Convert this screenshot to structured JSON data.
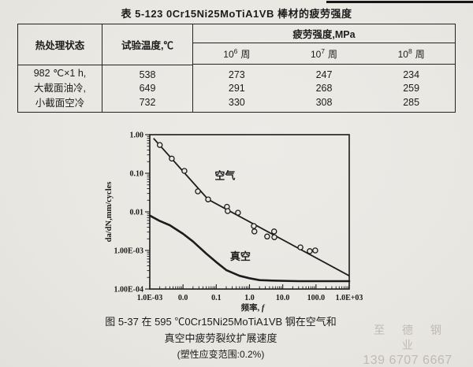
{
  "page": {
    "bg": "#e9e7e2",
    "ink": "#1c1c1c",
    "watermark_color": "#c0b9b5"
  },
  "table": {
    "title": "表 5-123  0Cr15Ni25MoTiA1VB 棒材的疲劳强度",
    "col_treatment": "热处理状态",
    "col_temp": "试验温度,℃",
    "col_fatigue": "疲劳强度,MPa",
    "cycle_cols": [
      {
        "base": "10",
        "exp": "6",
        "unit": "周"
      },
      {
        "base": "10",
        "exp": "7",
        "unit": "周"
      },
      {
        "base": "10",
        "exp": "8",
        "unit": "周"
      }
    ],
    "rows": [
      {
        "treatment": "982 ℃×1 h,",
        "temp": "538",
        "c6": "273",
        "c7": "247",
        "c8": "234"
      },
      {
        "treatment": "大截面油冷,",
        "temp": "649",
        "c6": "291",
        "c7": "268",
        "c8": "259"
      },
      {
        "treatment": "小截面空冷",
        "temp": "732",
        "c6": "330",
        "c7": "308",
        "c8": "285"
      }
    ]
  },
  "chart_data": {
    "type": "scatter",
    "title": "",
    "xlabel": "频率, f",
    "ylabel": "da/dN,mm/cycles",
    "x_scale": "log",
    "y_scale": "log",
    "xlim": [
      0.001,
      1000
    ],
    "ylim": [
      0.0001,
      1
    ],
    "grid": false,
    "x_tick_values": [
      0.001,
      0.01,
      0.1,
      1,
      10,
      100,
      1000
    ],
    "x_tick_labels": [
      "1.0E-03",
      "0.0",
      "0.1",
      "1.0",
      "10.0",
      "100.0",
      "1.0E+03"
    ],
    "y_tick_values": [
      1,
      0.1,
      0.01,
      0.001,
      0.0001
    ],
    "y_tick_labels": [
      "1.00",
      "0.10",
      "0.01",
      "1.00E-03",
      "1.00E-04"
    ],
    "series": [
      {
        "name": "空气",
        "kind": "scatter-line",
        "marker": "open-circle",
        "label_at": [
          0.09,
          0.07
        ],
        "line_points": [
          [
            0.0013,
            0.8
          ],
          [
            0.057,
            0.021
          ],
          [
            1000,
            0.00022
          ]
        ],
        "points": [
          [
            0.002,
            0.54
          ],
          [
            0.0046,
            0.24
          ],
          [
            0.011,
            0.115
          ],
          [
            0.028,
            0.034
          ],
          [
            0.057,
            0.021
          ],
          [
            0.21,
            0.0135
          ],
          [
            0.22,
            0.0105
          ],
          [
            0.45,
            0.0095
          ],
          [
            1.35,
            0.0043
          ],
          [
            1.4,
            0.0031
          ],
          [
            3.4,
            0.0023
          ],
          [
            5.5,
            0.0031
          ],
          [
            5.6,
            0.0022
          ],
          [
            34,
            0.0012
          ],
          [
            65,
            0.00096
          ],
          [
            95,
            0.001
          ]
        ]
      },
      {
        "name": "真空",
        "kind": "line",
        "label_at": [
          0.26,
          0.00057
        ],
        "points": [
          [
            0.001,
            0.008
          ],
          [
            0.002,
            0.0058
          ],
          [
            0.004,
            0.0045
          ],
          [
            0.01,
            0.0027
          ],
          [
            0.02,
            0.0017
          ],
          [
            0.05,
            0.00083
          ],
          [
            0.1,
            0.0005
          ],
          [
            0.2,
            0.00031
          ],
          [
            0.5,
            0.00022
          ],
          [
            1,
            0.00019
          ],
          [
            2,
            0.00017
          ],
          [
            5,
            0.000165
          ],
          [
            30,
            0.00016
          ],
          [
            1000,
            0.00016
          ]
        ]
      }
    ]
  },
  "caption": {
    "line1": "图 5-37  在 595 ℃0Cr15Ni25MoTiA1VB 钢在空气和",
    "line2": "真空中疲劳裂纹扩展速度",
    "line3": "(塑性应变范围:0.2%)"
  },
  "watermark": {
    "line1": "至 德 钢 业",
    "line2": "139 6707 6667"
  }
}
